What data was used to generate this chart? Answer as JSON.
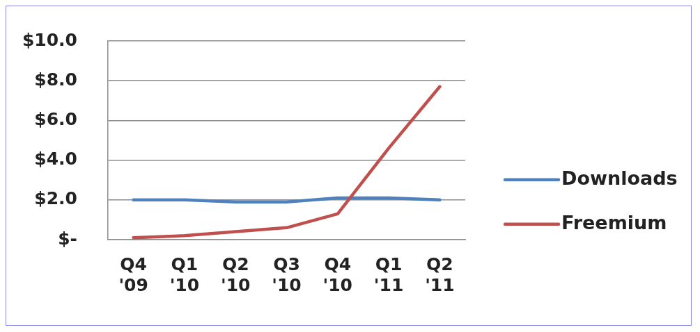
{
  "chart_data": {
    "type": "line",
    "categories": [
      "Q4 '09",
      "Q1 '10",
      "Q2 '10",
      "Q3 '10",
      "Q4 '10",
      "Q1 '11",
      "Q2 '11"
    ],
    "series": [
      {
        "name": "Downloads",
        "color": "#4f81bd",
        "values": [
          2.0,
          2.0,
          1.9,
          1.9,
          2.1,
          2.1,
          2.0
        ]
      },
      {
        "name": "Freemium",
        "color": "#c0504d",
        "values": [
          0.1,
          0.2,
          0.4,
          0.6,
          1.3,
          4.6,
          7.7
        ]
      }
    ],
    "ylim": [
      0,
      10
    ],
    "yticks": [
      {
        "value": 0,
        "label": "$-"
      },
      {
        "value": 2,
        "label": "$2.0"
      },
      {
        "value": 4,
        "label": "$4.0"
      },
      {
        "value": 6,
        "label": "$6.0"
      },
      {
        "value": 8,
        "label": "$8.0"
      },
      {
        "value": 10,
        "label": "$10.0"
      }
    ],
    "grid": "y",
    "legend": "right"
  }
}
